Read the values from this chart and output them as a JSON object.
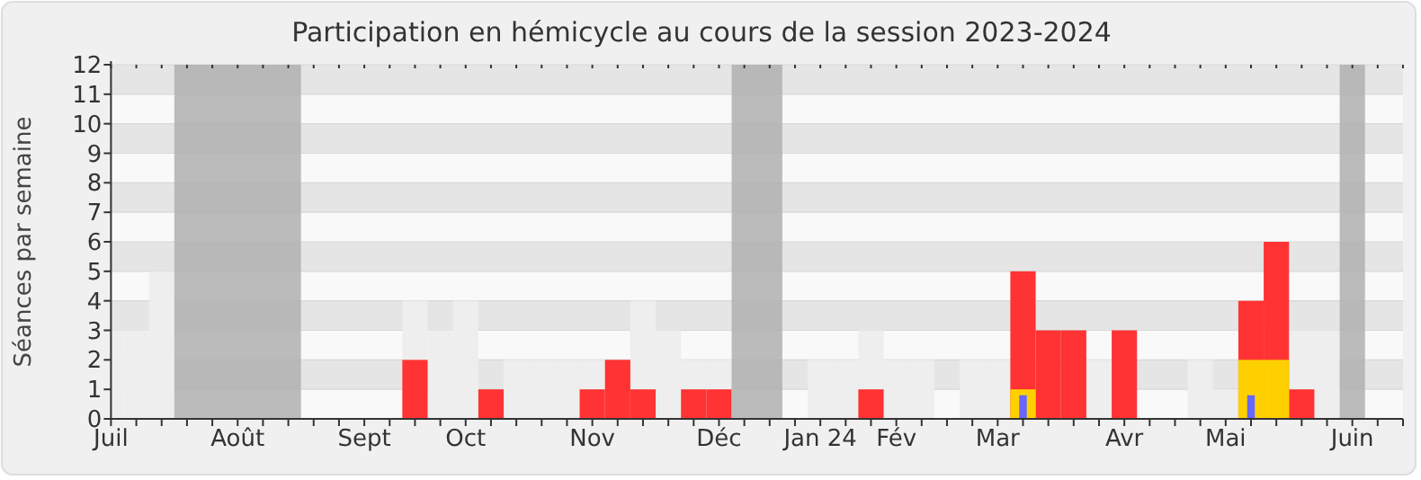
{
  "chart_data": {
    "type": "bar",
    "title": "Participation en hémicycle au cours de la session 2023-2024",
    "ylabel": "Séances par semaine",
    "x": [
      "2023-07-03",
      "2023-07-10",
      "2023-07-17",
      "2023-07-24",
      "2023-07-31",
      "2023-08-07",
      "2023-08-14",
      "2023-08-21",
      "2023-08-28",
      "2023-09-04",
      "2023-09-11",
      "2023-09-18",
      "2023-09-25",
      "2023-10-02",
      "2023-10-09",
      "2023-10-16",
      "2023-10-23",
      "2023-10-30",
      "2023-11-06",
      "2023-11-13",
      "2023-11-20",
      "2023-11-27",
      "2023-12-04",
      "2023-12-11",
      "2023-12-18",
      "2023-12-25",
      "2024-01-01",
      "2024-01-08",
      "2024-01-15",
      "2024-01-22",
      "2024-01-29",
      "2024-02-05",
      "2024-02-12",
      "2024-02-19",
      "2024-02-26",
      "2024-03-04",
      "2024-03-11",
      "2024-03-18",
      "2024-03-25",
      "2024-04-01",
      "2024-04-08",
      "2024-04-15",
      "2024-04-22",
      "2024-04-29",
      "2024-05-06",
      "2024-05-13",
      "2024-05-20",
      "2024-05-27",
      "2024-06-03",
      "2024-06-10",
      "2024-06-17",
      "2024-06-24"
    ],
    "series": [
      {
        "color": "#eeeeee",
        "values": [
          3,
          3,
          5,
          null,
          null,
          null,
          null,
          null,
          0,
          0,
          0,
          0,
          4,
          3,
          4,
          null,
          2,
          2,
          2,
          2,
          null,
          4,
          3,
          2,
          2,
          null,
          null,
          0,
          2,
          2,
          3,
          2,
          2,
          0,
          2,
          2,
          null,
          null,
          null,
          2,
          0,
          0,
          0,
          2,
          1,
          null,
          null,
          3,
          3,
          null,
          0,
          0
        ]
      },
      {
        "color": "#ff3333",
        "values": [
          null,
          null,
          null,
          null,
          null,
          null,
          null,
          null,
          null,
          null,
          null,
          null,
          2,
          null,
          null,
          1,
          null,
          null,
          null,
          1,
          2,
          1,
          null,
          1,
          1,
          null,
          null,
          null,
          null,
          null,
          1,
          null,
          null,
          null,
          null,
          null,
          5,
          3,
          3,
          null,
          3,
          null,
          null,
          null,
          null,
          4,
          6,
          1,
          null,
          null,
          null,
          null
        ]
      },
      {
        "color": "#ffd000",
        "values": [
          null,
          null,
          null,
          null,
          null,
          null,
          null,
          null,
          null,
          null,
          null,
          null,
          null,
          null,
          null,
          null,
          null,
          null,
          null,
          null,
          null,
          null,
          null,
          null,
          null,
          null,
          null,
          null,
          null,
          null,
          null,
          null,
          null,
          null,
          null,
          null,
          1,
          null,
          null,
          null,
          null,
          null,
          null,
          null,
          null,
          2,
          2,
          null,
          null,
          null,
          null,
          null
        ]
      },
      {
        "color": "#6666ff",
        "values": [
          null,
          null,
          null,
          null,
          null,
          null,
          null,
          null,
          null,
          null,
          null,
          null,
          null,
          null,
          null,
          null,
          null,
          null,
          null,
          null,
          null,
          null,
          null,
          null,
          null,
          null,
          null,
          null,
          null,
          null,
          null,
          null,
          null,
          null,
          null,
          null,
          0.8,
          null,
          null,
          null,
          null,
          null,
          null,
          null,
          null,
          0.8,
          null,
          null,
          null,
          null,
          null,
          null
        ]
      }
    ],
    "bands": [
      {
        "axis": "x",
        "from": "2023-07-20T12:00",
        "to": "2023-08-24T12:00",
        "color": "#b0b0b0"
      },
      {
        "axis": "x",
        "from": "2023-12-21T12:00",
        "to": "2024-01-04T12:00",
        "color": "#b0b0b0"
      },
      {
        "axis": "x",
        "from": "2024-06-06T12:00",
        "to": "2024-06-13T12:00",
        "color": "#b0b0b0"
      }
    ],
    "xlim": [
      "2023-07-03",
      "2024-06-24"
    ],
    "xticks": [
      {
        "value": "2023-07-03",
        "label": "Juil"
      },
      {
        "value": "2023-07-10",
        "label": null
      },
      {
        "value": "2023-07-17",
        "label": null
      },
      {
        "value": "2023-07-24",
        "label": null
      },
      {
        "value": "2023-07-31",
        "label": null
      },
      {
        "value": "2023-08-07",
        "label": "Août"
      },
      {
        "value": "2023-08-14",
        "label": null
      },
      {
        "value": "2023-08-21",
        "label": null
      },
      {
        "value": "2023-08-28",
        "label": null
      },
      {
        "value": "2023-09-04",
        "label": null
      },
      {
        "value": "2023-09-11",
        "label": "Sept"
      },
      {
        "value": "2023-09-18",
        "label": null
      },
      {
        "value": "2023-09-25",
        "label": null
      },
      {
        "value": "2023-10-02",
        "label": null
      },
      {
        "value": "2023-10-09",
        "label": "Oct"
      },
      {
        "value": "2023-10-16",
        "label": null
      },
      {
        "value": "2023-10-23",
        "label": null
      },
      {
        "value": "2023-10-30",
        "label": null
      },
      {
        "value": "2023-11-06",
        "label": null
      },
      {
        "value": "2023-11-13",
        "label": "Nov"
      },
      {
        "value": "2023-11-20",
        "label": null
      },
      {
        "value": "2023-11-27",
        "label": null
      },
      {
        "value": "2023-12-04",
        "label": null
      },
      {
        "value": "2023-12-11",
        "label": null
      },
      {
        "value": "2023-12-18",
        "label": "Déc"
      },
      {
        "value": "2023-12-25",
        "label": null
      },
      {
        "value": "2024-01-01",
        "label": null
      },
      {
        "value": "2024-01-08",
        "label": null
      },
      {
        "value": "2024-01-15",
        "label": "Jan 24"
      },
      {
        "value": "2024-01-22",
        "label": null
      },
      {
        "value": "2024-01-29",
        "label": null
      },
      {
        "value": "2024-02-05",
        "label": "Fév"
      },
      {
        "value": "2024-02-12",
        "label": null
      },
      {
        "value": "2024-02-19",
        "label": null
      },
      {
        "value": "2024-02-26",
        "label": null
      },
      {
        "value": "2024-03-04",
        "label": "Mar"
      },
      {
        "value": "2024-03-11",
        "label": null
      },
      {
        "value": "2024-03-18",
        "label": null
      },
      {
        "value": "2024-03-25",
        "label": null
      },
      {
        "value": "2024-04-01",
        "label": null
      },
      {
        "value": "2024-04-08",
        "label": "Avr"
      },
      {
        "value": "2024-04-15",
        "label": null
      },
      {
        "value": "2024-04-22",
        "label": null
      },
      {
        "value": "2024-04-29",
        "label": null
      },
      {
        "value": "2024-05-06",
        "label": "Mai"
      },
      {
        "value": "2024-05-13",
        "label": null
      },
      {
        "value": "2024-05-20",
        "label": null
      },
      {
        "value": "2024-05-27",
        "label": null
      },
      {
        "value": "2024-06-03",
        "label": null
      },
      {
        "value": "2024-06-10",
        "label": "Juin"
      },
      {
        "value": "2024-06-17",
        "label": null
      },
      {
        "value": "2024-06-24",
        "label": null
      }
    ],
    "ylim": [
      0,
      12
    ],
    "yticks": [
      0,
      1,
      2,
      3,
      4,
      5,
      6,
      7,
      8,
      9,
      10,
      11,
      12
    ],
    "grid": true
  }
}
